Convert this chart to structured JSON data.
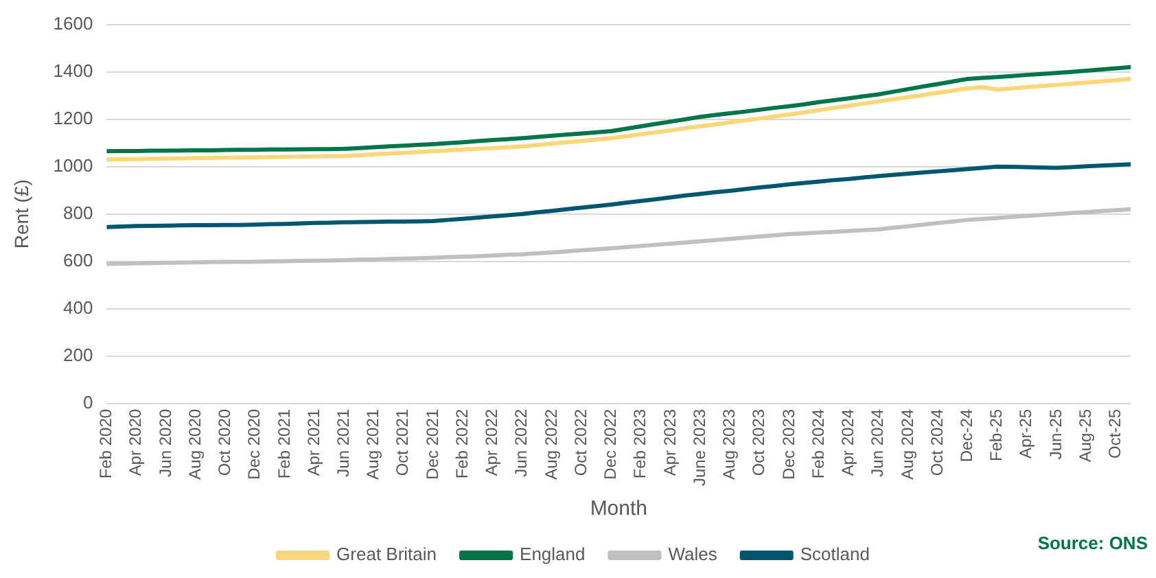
{
  "chart_data": {
    "type": "line",
    "ylabel": "Rent (£)",
    "xlabel": "Month",
    "annotations": [
      "Source: ONS"
    ],
    "categories": [
      "Feb 2020",
      null,
      "Apr 2020",
      null,
      "Jun 2020",
      null,
      "Aug 2020",
      null,
      "Oct 2020",
      null,
      "Dec 2020",
      null,
      "Feb 2021",
      null,
      "Apr 2021",
      null,
      "Jun 2021",
      null,
      "Aug 2021",
      null,
      "Oct 2021",
      null,
      "Dec 2021",
      null,
      "Feb 2022",
      null,
      "Apr 2022",
      null,
      "Jun 2022",
      null,
      "Aug 2022",
      null,
      "Oct 2022",
      null,
      "Dec 2022",
      null,
      "Feb 2023",
      null,
      "Apr 2023",
      null,
      "June 2023",
      null,
      "Aug 2023",
      null,
      "Oct 2023",
      null,
      "Dec 2023",
      null,
      "Feb 2024",
      null,
      "Apr 2024",
      null,
      "Jun 2024",
      null,
      "Aug 2024",
      null,
      "Oct 2024",
      null,
      "Dec-24",
      null,
      "Feb-25",
      null,
      "Apr-25",
      null,
      "Jun-25",
      null,
      "Aug-25",
      null,
      "Oct-25",
      null
    ],
    "ylim": [
      0,
      1600
    ],
    "yticks": [
      0,
      200,
      400,
      600,
      800,
      1000,
      1200,
      1400,
      1600
    ],
    "grid": "y",
    "legend": "bottom",
    "marker": "none",
    "line_style": "solid",
    "series": [
      {
        "name": "Great Britain",
        "color": "#fad77b",
        "values": [
          1030,
          1031,
          1032,
          1033,
          1034,
          1035,
          1036,
          1037,
          1038,
          1038,
          1039,
          1040,
          1041,
          1042,
          1043,
          1044,
          1045,
          1048,
          1052,
          1055,
          1058,
          1062,
          1065,
          1068,
          1072,
          1075,
          1078,
          1082,
          1085,
          1091,
          1097,
          1103,
          1108,
          1114,
          1120,
          1128,
          1137,
          1145,
          1153,
          1162,
          1170,
          1178,
          1187,
          1195,
          1203,
          1212,
          1220,
          1229,
          1238,
          1248,
          1257,
          1266,
          1275,
          1284,
          1293,
          1302,
          1312,
          1321,
          1330,
          1335,
          1325,
          1330,
          1335,
          1340,
          1345,
          1350,
          1355,
          1360,
          1365,
          1370
        ]
      },
      {
        "name": "England",
        "color": "#00754a",
        "values": [
          1065,
          1066,
          1066,
          1067,
          1067,
          1068,
          1069,
          1069,
          1070,
          1071,
          1071,
          1072,
          1072,
          1073,
          1074,
          1074,
          1075,
          1078,
          1082,
          1085,
          1088,
          1092,
          1095,
          1099,
          1103,
          1108,
          1112,
          1116,
          1120,
          1125,
          1130,
          1135,
          1140,
          1145,
          1150,
          1160,
          1170,
          1180,
          1190,
          1200,
          1210,
          1218,
          1225,
          1232,
          1240,
          1248,
          1255,
          1263,
          1272,
          1280,
          1288,
          1297,
          1305,
          1316,
          1327,
          1338,
          1348,
          1359,
          1370,
          1374,
          1378,
          1382,
          1387,
          1391,
          1395,
          1400,
          1405,
          1410,
          1415,
          1420
        ]
      },
      {
        "name": "Wales",
        "color": "#c0c0c0",
        "values": [
          590,
          591,
          592,
          593,
          594,
          595,
          596,
          597,
          598,
          598,
          599,
          600,
          601,
          602,
          603,
          604,
          605,
          607,
          608,
          610,
          612,
          613,
          615,
          618,
          620,
          622,
          625,
          628,
          630,
          634,
          638,
          642,
          647,
          651,
          655,
          660,
          665,
          670,
          675,
          680,
          685,
          690,
          695,
          700,
          705,
          710,
          715,
          718,
          722,
          725,
          728,
          732,
          735,
          742,
          748,
          755,
          762,
          768,
          775,
          779,
          783,
          788,
          792,
          796,
          800,
          804,
          808,
          812,
          816,
          820
        ]
      },
      {
        "name": "Scotland",
        "color": "#00566e",
        "values": [
          745,
          747,
          749,
          750,
          751,
          752,
          753,
          753,
          754,
          754,
          755,
          757,
          758,
          760,
          762,
          763,
          765,
          766,
          767,
          768,
          768,
          769,
          770,
          775,
          780,
          785,
          790,
          795,
          800,
          807,
          813,
          820,
          827,
          833,
          840,
          848,
          855,
          862,
          870,
          878,
          885,
          892,
          898,
          905,
          912,
          918,
          925,
          931,
          937,
          943,
          948,
          954,
          960,
          965,
          970,
          975,
          980,
          985,
          990,
          995,
          1000,
          999,
          998,
          996,
          995,
          998,
          1001,
          1004,
          1007,
          1010
        ]
      }
    ]
  }
}
